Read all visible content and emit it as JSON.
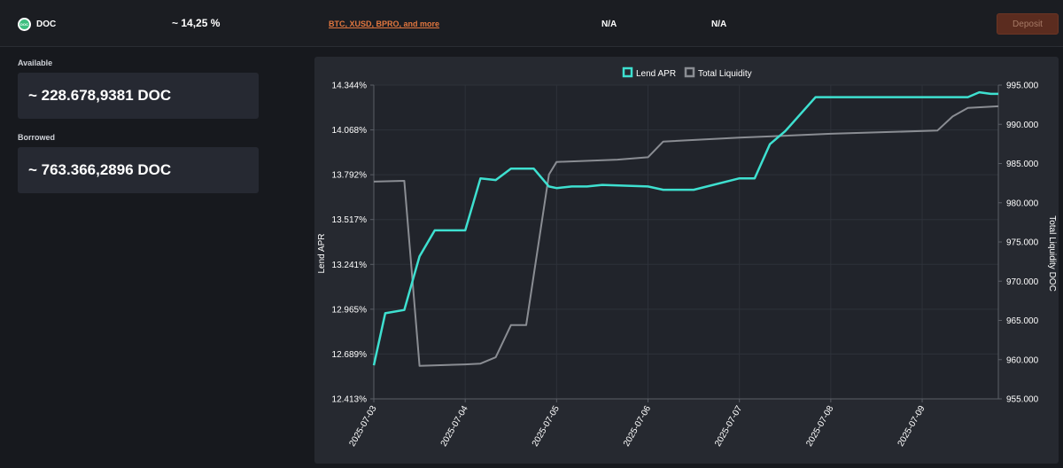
{
  "asset": {
    "icon": "doc-coin-icon",
    "name": "DOC",
    "coin_text": "DOC"
  },
  "apr": "~ 14,25 %",
  "collateral_link": "BTC, XUSD, BPRO,  and more",
  "na_1": "N/A",
  "na_2": "N/A",
  "deposit_label": "Deposit",
  "available": {
    "label": "Available",
    "value": "~ 228.678,9381 DOC"
  },
  "borrowed": {
    "label": "Borrowed",
    "value": "~ 763.366,2896 DOC"
  },
  "colors": {
    "lend_apr": "#3ee0d0",
    "total_liquidity": "#8a8d93",
    "accent": "#e2773f"
  },
  "chart_data": {
    "type": "line",
    "legend_position": "top-center",
    "grid": true,
    "x_ticks": [
      "2025-07-03",
      "2025-07-04",
      "2025-07-05",
      "2025-07-06",
      "2025-07-07",
      "2025-07-08",
      "2025-07-09"
    ],
    "x_range": [
      "2025-07-03T00:00",
      "2025-07-09T20:00"
    ],
    "y_left": {
      "label": "Lend APR",
      "ticks": [
        "14.344%",
        "14.068%",
        "13.792%",
        "13.517%",
        "13.241%",
        "12.965%",
        "12.689%",
        "12.413%"
      ],
      "range": [
        12.413,
        14.344
      ]
    },
    "y_right": {
      "label": "Total Liquidity DOC",
      "ticks": [
        "995.000",
        "990.000",
        "985.000",
        "980.000",
        "975.000",
        "970.000",
        "965.000",
        "960.000",
        "955.000"
      ],
      "range": [
        955000,
        995000
      ]
    },
    "series": [
      {
        "name": "Lend APR",
        "axis": "left",
        "points": [
          [
            "2025-07-03T00:00",
            12.62
          ],
          [
            "2025-07-03T03:00",
            12.94
          ],
          [
            "2025-07-03T08:00",
            12.96
          ],
          [
            "2025-07-03T12:00",
            13.29
          ],
          [
            "2025-07-03T16:00",
            13.45
          ],
          [
            "2025-07-03T20:00",
            13.45
          ],
          [
            "2025-07-04T00:00",
            13.45
          ],
          [
            "2025-07-04T04:00",
            13.77
          ],
          [
            "2025-07-04T08:00",
            13.76
          ],
          [
            "2025-07-04T12:00",
            13.83
          ],
          [
            "2025-07-04T18:00",
            13.83
          ],
          [
            "2025-07-04T22:00",
            13.72
          ],
          [
            "2025-07-05T00:00",
            13.71
          ],
          [
            "2025-07-05T04:00",
            13.72
          ],
          [
            "2025-07-05T08:00",
            13.72
          ],
          [
            "2025-07-05T12:00",
            13.73
          ],
          [
            "2025-07-06T00:00",
            13.72
          ],
          [
            "2025-07-06T04:00",
            13.7
          ],
          [
            "2025-07-06T12:00",
            13.7
          ],
          [
            "2025-07-07T00:00",
            13.77
          ],
          [
            "2025-07-07T04:00",
            13.77
          ],
          [
            "2025-07-07T08:00",
            13.98
          ],
          [
            "2025-07-07T12:00",
            14.06
          ],
          [
            "2025-07-07T20:00",
            14.27
          ],
          [
            "2025-07-08T12:00",
            14.27
          ],
          [
            "2025-07-09T12:00",
            14.27
          ],
          [
            "2025-07-09T15:00",
            14.3
          ],
          [
            "2025-07-09T18:00",
            14.29
          ],
          [
            "2025-07-09T20:00",
            14.29
          ]
        ]
      },
      {
        "name": "Total Liquidity",
        "axis": "right",
        "points": [
          [
            "2025-07-03T00:00",
            982700
          ],
          [
            "2025-07-03T08:00",
            982800
          ],
          [
            "2025-07-03T12:00",
            959200
          ],
          [
            "2025-07-04T00:00",
            959400
          ],
          [
            "2025-07-04T04:00",
            959500
          ],
          [
            "2025-07-04T08:00",
            960300
          ],
          [
            "2025-07-04T12:00",
            964400
          ],
          [
            "2025-07-04T16:00",
            964400
          ],
          [
            "2025-07-04T22:00",
            983600
          ],
          [
            "2025-07-05T00:00",
            985200
          ],
          [
            "2025-07-05T16:00",
            985500
          ],
          [
            "2025-07-06T00:00",
            985800
          ],
          [
            "2025-07-06T04:00",
            987800
          ],
          [
            "2025-07-07T00:00",
            988300
          ],
          [
            "2025-07-08T00:00",
            988800
          ],
          [
            "2025-07-09T04:00",
            989200
          ],
          [
            "2025-07-09T08:00",
            991000
          ],
          [
            "2025-07-09T12:00",
            992100
          ],
          [
            "2025-07-09T20:00",
            992300
          ]
        ]
      }
    ]
  }
}
